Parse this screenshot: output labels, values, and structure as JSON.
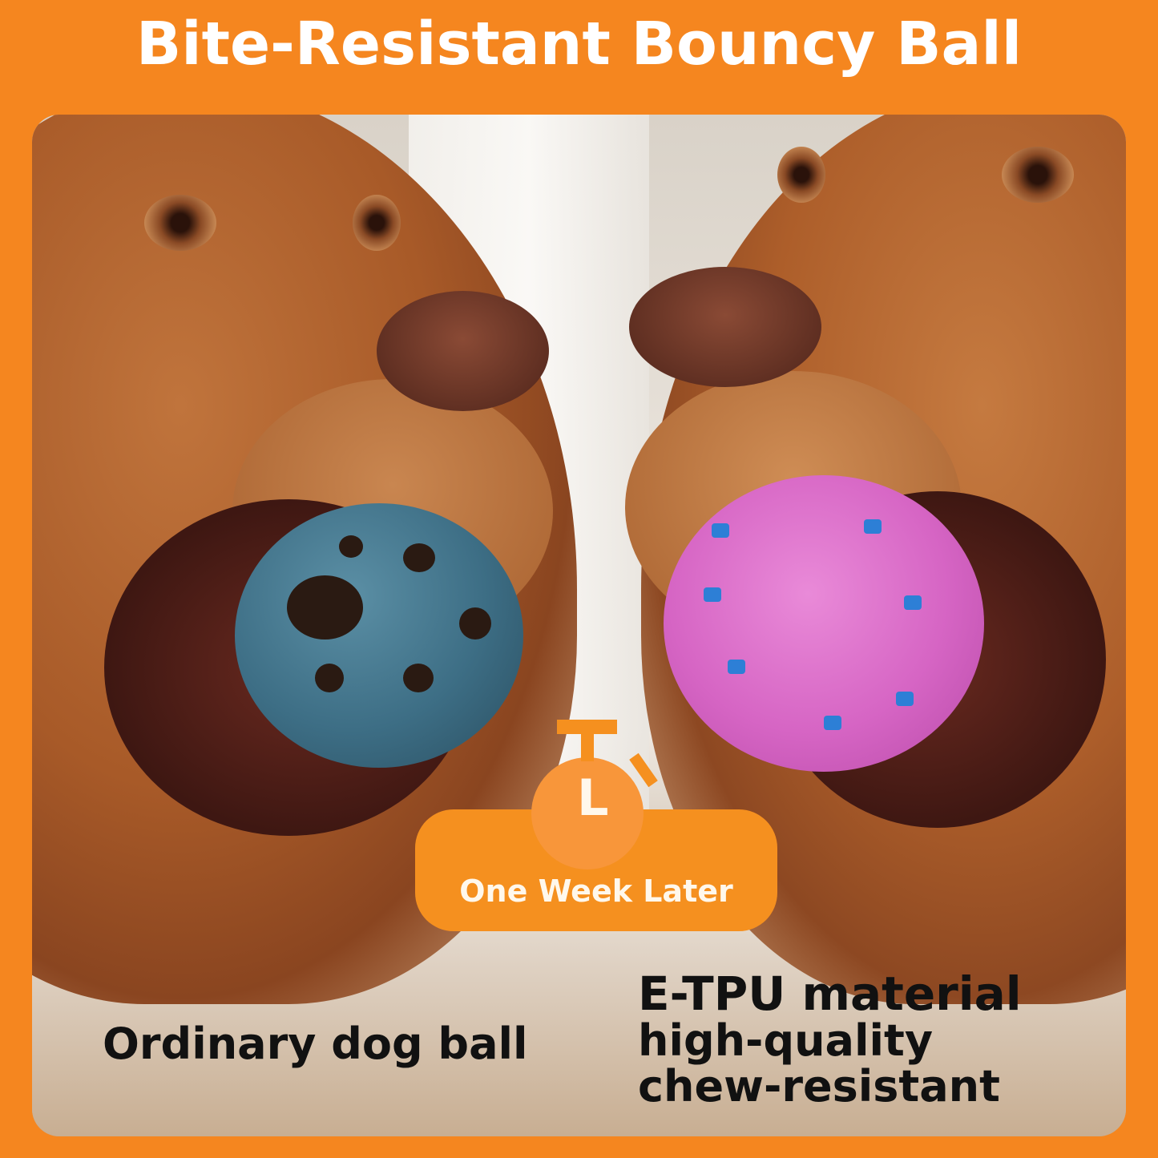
{
  "title": "Bite-Resistant Bouncy Ball",
  "badge": {
    "label": "One Week Later",
    "icon": "stopwatch-icon",
    "color": "#f5901f"
  },
  "left_caption": "Ordinary dog ball",
  "right_caption": {
    "line1": "E-TPU material",
    "line2": "high-quality",
    "line3": "chew-resistant"
  },
  "colors": {
    "frame": "#f5861f",
    "ordinary_ball": "#3d6e85",
    "etpu_ball": "#d665c4"
  }
}
